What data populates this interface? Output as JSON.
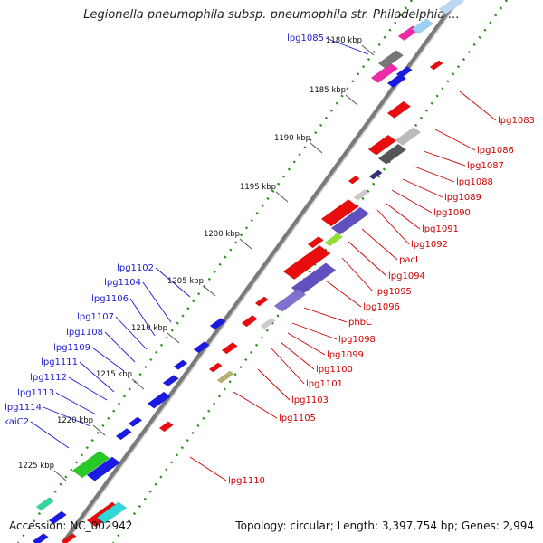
{
  "title": "Legionella pneumophila subsp. pneumophila str. Philadelphia ...",
  "footer": {
    "accession": "Accession: NC_002942",
    "summary": "Topology: circular; Length: 3,397,754 bp; Genes: 2,994"
  },
  "colors": {
    "backbone": "#7a7a7a",
    "ticks": "#2d8a1e",
    "label_forward": "#1a1ad0",
    "label_reverse": "#cc0000",
    "ruler_text": "#111111"
  },
  "ruler": {
    "unit": "kbp",
    "ticks": [
      "1180 kbp",
      "1185 kbp",
      "1190 kbp",
      "1195 kbp",
      "1200 kbp",
      "1205 kbp",
      "1210 kbp",
      "1215 kbp",
      "1220 kbp",
      "1225 kbp"
    ]
  },
  "genes_forward": [
    "lpg1085",
    "lpg1102",
    "lpg1104",
    "lpg1106",
    "lpg1107",
    "lpg1108",
    "lpg1109",
    "lpg1111",
    "lpg1112",
    "lpg1113",
    "lpg1114",
    "kaiC2"
  ],
  "genes_reverse": [
    "lpg1083",
    "lpg1086",
    "lpg1087",
    "lpg1088",
    "lpg1089",
    "lpg1090",
    "lpg1091",
    "lpg1092",
    "pacL",
    "lpg1094",
    "lpg1095",
    "lpg1096",
    "phbC",
    "lpg1098",
    "lpg1099",
    "lpg1100",
    "lpg1101",
    "lpg1103",
    "lpg1105",
    "lpg1110"
  ]
}
